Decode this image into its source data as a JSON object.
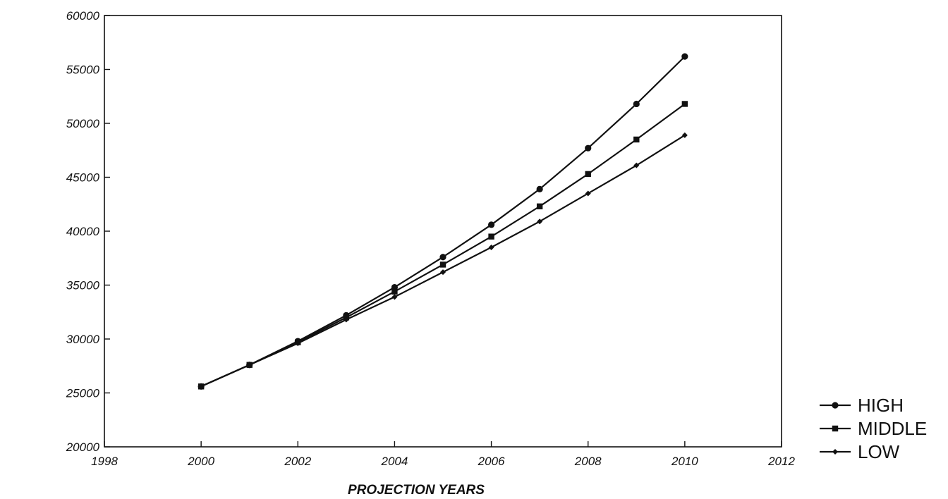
{
  "chart_data": {
    "type": "line",
    "xlabel": "PROJECTION YEARS",
    "ylabel": "",
    "xlim": [
      1998,
      2012
    ],
    "ylim": [
      20000,
      60000
    ],
    "x_ticks": [
      "1998",
      "2000",
      "2002",
      "2004",
      "2006",
      "2008",
      "2010",
      "2012"
    ],
    "y_ticks": [
      "20000",
      "25000",
      "30000",
      "35000",
      "40000",
      "45000",
      "50000",
      "55000",
      "60000"
    ],
    "grid": false,
    "legend_position": "bottom-right",
    "x": [
      2000,
      2001,
      2002,
      2003,
      2004,
      2005,
      2006,
      2007,
      2008,
      2009,
      2010
    ],
    "series": [
      {
        "name": "HIGH",
        "marker": "circle",
        "values": [
          25600,
          27600,
          29800,
          32200,
          34800,
          37600,
          40600,
          43900,
          47700,
          51800,
          56200
        ]
      },
      {
        "name": "MIDDLE",
        "marker": "square",
        "values": [
          25600,
          27600,
          29700,
          32000,
          34400,
          36900,
          39500,
          42300,
          45300,
          48500,
          51800
        ]
      },
      {
        "name": "LOW",
        "marker": "diamond",
        "values": [
          25600,
          27600,
          29600,
          31800,
          33900,
          36200,
          38500,
          40900,
          43500,
          46100,
          48900
        ]
      }
    ]
  }
}
